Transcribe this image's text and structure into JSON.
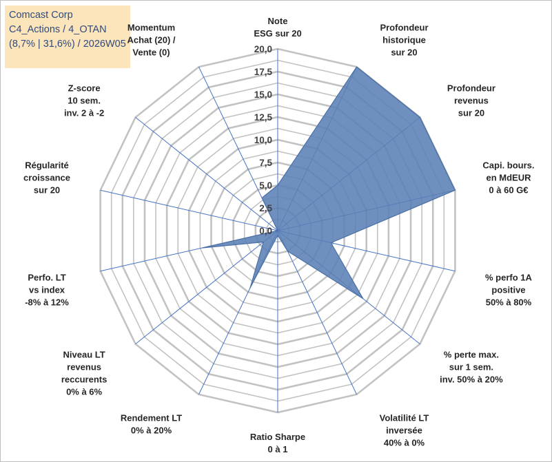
{
  "chart_data": {
    "type": "radar",
    "title_lines": [
      "Comcast Corp",
      "C4_Actions / 4_OTAN",
      "(8,7% | 31,6%) / 2026W05"
    ],
    "axes": [
      {
        "lines": [
          "Note",
          "ESG sur 20"
        ]
      },
      {
        "lines": [
          "Profondeur",
          "historique",
          "sur 20"
        ]
      },
      {
        "lines": [
          "Profondeur",
          "revenus",
          "sur 20"
        ]
      },
      {
        "lines": [
          "Capi. bours.",
          "en MdEUR",
          "0 à 60 G€"
        ]
      },
      {
        "lines": [
          "% perfo 1A",
          "positive",
          "50% à 80%"
        ]
      },
      {
        "lines": [
          "% perte max.",
          "sur 1 sem.",
          "inv. 50% à 20%"
        ]
      },
      {
        "lines": [
          "Volatilité LT",
          "inversée",
          "40% à 0%"
        ]
      },
      {
        "lines": [
          "Ratio Sharpe",
          "0 à 1"
        ]
      },
      {
        "lines": [
          "Rendement LT",
          "0% à 20%"
        ]
      },
      {
        "lines": [
          "Niveau LT",
          "revenus",
          "reccurents",
          "0% à 6%"
        ]
      },
      {
        "lines": [
          "Perfo. LT",
          "vs index",
          "-8% à 12%"
        ]
      },
      {
        "lines": [
          "Régularité",
          "croissance",
          "sur 20"
        ]
      },
      {
        "lines": [
          "Z-score",
          "10 sem.",
          "inv. 2 à -2"
        ]
      },
      {
        "lines": [
          "Momentum",
          "Achat (20) /",
          "Vente (0)"
        ]
      }
    ],
    "series": [
      {
        "name": "Comcast Corp",
        "values": [
          5.0,
          20.0,
          20.0,
          20.0,
          6.0,
          12.0,
          2.5,
          0.5,
          7.0,
          2.0,
          8.5,
          0.0,
          0.0,
          4.0
        ]
      }
    ],
    "rlim": [
      0,
      20
    ],
    "ticks": [
      "0,0",
      "2,5",
      "5,0",
      "7,5",
      "10,0",
      "12,5",
      "15,0",
      "17,5",
      "20,0"
    ],
    "colors": {
      "fill": "#5b80b5",
      "stroke": "#4a6fa5",
      "grid": "#c2c2c2",
      "spoke": "#4472c4"
    }
  }
}
